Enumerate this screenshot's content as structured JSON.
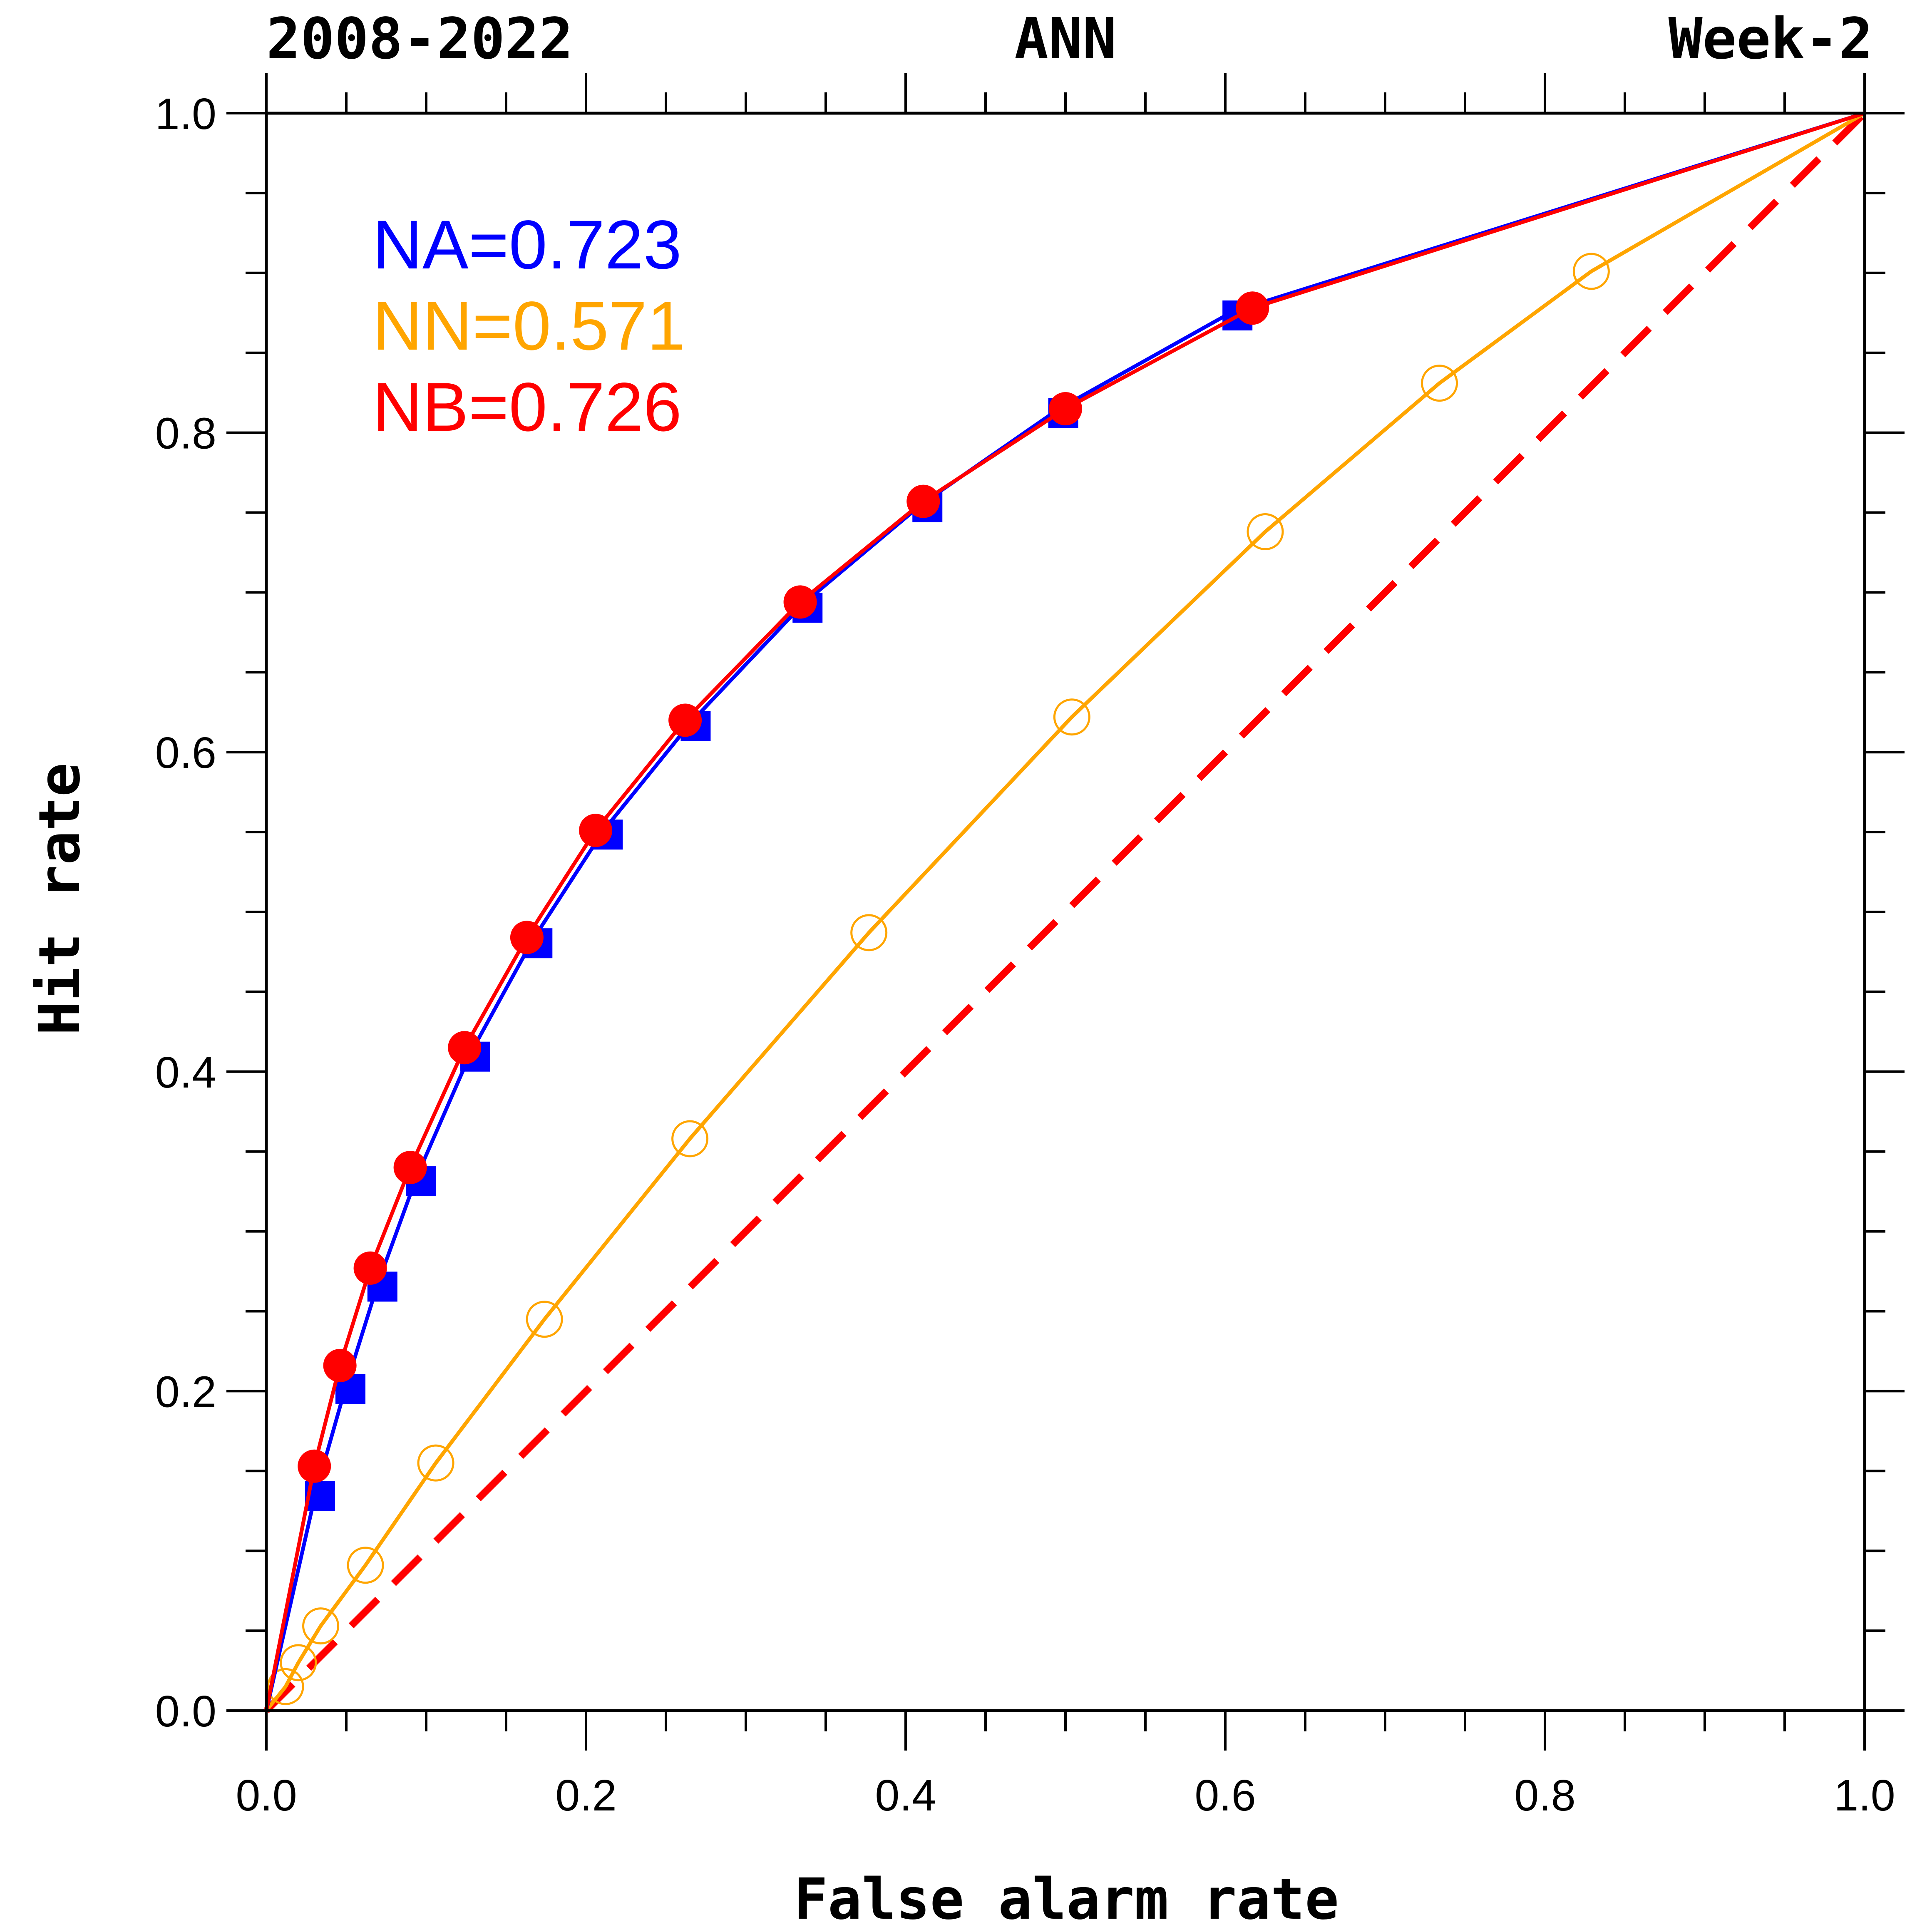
{
  "chart_data": {
    "type": "line",
    "title_left": "2008-2022",
    "title_center": "ANN",
    "title_right": "Week-2",
    "xlabel": "False alarm rate",
    "ylabel": "Hit rate",
    "xlim": [
      0,
      1
    ],
    "ylim": [
      0,
      1
    ],
    "x_ticks": [
      "0.0",
      "0.2",
      "0.4",
      "0.6",
      "0.8",
      "1.0"
    ],
    "y_ticks": [
      "0.0",
      "0.2",
      "0.4",
      "0.6",
      "0.8",
      "1.0"
    ],
    "grid": false,
    "legend": [
      {
        "text": "NA=0.723",
        "color": "#0000ff"
      },
      {
        "text": "NN=0.571",
        "color": "#ffa500"
      },
      {
        "text": "NB=0.726",
        "color": "#ff0000"
      }
    ],
    "series": [
      {
        "name": "NA",
        "color": "#0000ff",
        "marker": "square",
        "x": [
          0,
          0.031,
          0.05,
          0.07,
          0.094,
          0.128,
          0.167,
          0.211,
          0.266,
          0.336,
          0.411,
          0.496,
          0.605,
          1.0
        ],
        "y": [
          0,
          0.137,
          0.204,
          0.268,
          0.334,
          0.412,
          0.483,
          0.551,
          0.619,
          0.693,
          0.756,
          0.815,
          0.876,
          1.0
        ]
      },
      {
        "name": "NN",
        "color": "#ffa500",
        "marker": "open-circle",
        "x": [
          0,
          0.012,
          0.02,
          0.034,
          0.062,
          0.106,
          0.174,
          0.265,
          0.377,
          0.504,
          0.625,
          0.734,
          0.829,
          1.0
        ],
        "y": [
          0,
          0.015,
          0.03,
          0.053,
          0.091,
          0.155,
          0.245,
          0.358,
          0.487,
          0.622,
          0.738,
          0.831,
          0.901,
          1.0
        ]
      },
      {
        "name": "NB",
        "color": "#ff0000",
        "marker": "filled-circle",
        "x": [
          0,
          0.03,
          0.046,
          0.065,
          0.09,
          0.124,
          0.163,
          0.206,
          0.262,
          0.334,
          0.411,
          0.5,
          0.617,
          1.0
        ],
        "y": [
          0,
          0.153,
          0.216,
          0.277,
          0.34,
          0.415,
          0.484,
          0.551,
          0.62,
          0.694,
          0.757,
          0.815,
          0.878,
          1.0
        ]
      },
      {
        "name": "no-skill",
        "color": "#ff0000",
        "marker": "none",
        "dashed": true,
        "x": [
          0,
          1
        ],
        "y": [
          0,
          1
        ]
      }
    ]
  }
}
